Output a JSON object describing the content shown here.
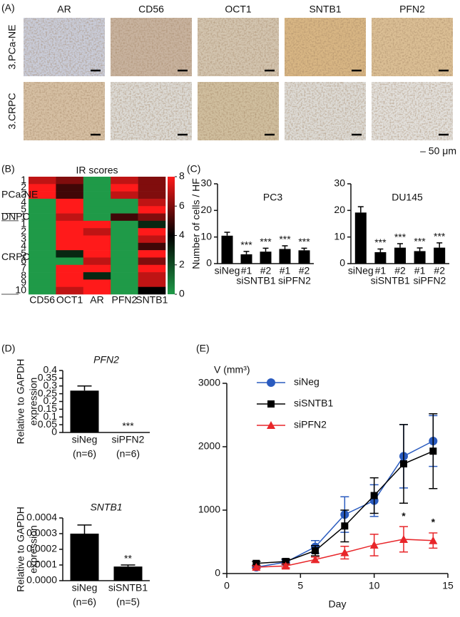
{
  "figure": {
    "panel_labels": [
      "(A)",
      "(B)",
      "(C)",
      "(D)",
      "(E)"
    ]
  },
  "ihc_panel": {
    "columns": [
      "AR",
      "CD56",
      "OCT1",
      "SNTB1",
      "PFN2"
    ],
    "rows": [
      "3.PCa-NE",
      "3.CRPC"
    ],
    "scale_label": "– 50 μm"
  },
  "chart_data": [
    {
      "type": "heatmap",
      "title": "IR scores",
      "columns": [
        "CD56",
        "OCT1",
        "AR",
        "PFN2",
        "SNTB1"
      ],
      "groups": [
        {
          "name": "PCa-NE",
          "rows": [
            "1",
            "2",
            "3",
            "4",
            "5"
          ],
          "values": [
            [
              7,
              6,
              0,
              7,
              6
            ],
            [
              8,
              5,
              0,
              8,
              6
            ],
            [
              8,
              5,
              0,
              7,
              6
            ],
            [
              0,
              8,
              0,
              0,
              7
            ],
            [
              0,
              8,
              0,
              0,
              8
            ]
          ]
        },
        {
          "name": "DNPC",
          "rows": [
            "1"
          ],
          "values": [
            [
              0,
              7,
              0,
              5,
              6
            ]
          ]
        },
        {
          "name": "CRPC",
          "rows": [
            "1",
            "2",
            "3",
            "4",
            "5",
            "6",
            "7",
            "8",
            "9",
            "10"
          ],
          "values": [
            [
              0,
              8,
              8,
              0,
              3
            ],
            [
              0,
              8,
              7,
              0,
              8
            ],
            [
              0,
              8,
              8,
              0,
              7
            ],
            [
              0,
              8,
              8,
              0,
              5
            ],
            [
              0,
              3,
              8,
              0,
              8
            ],
            [
              0,
              0,
              7,
              0,
              6
            ],
            [
              0,
              8,
              8,
              0,
              8
            ],
            [
              0,
              8,
              3,
              0,
              7
            ],
            [
              0,
              8,
              8,
              0,
              7
            ],
            [
              0,
              7,
              8,
              0,
              4
            ]
          ]
        }
      ],
      "zlim": [
        0,
        8
      ],
      "zticks": [
        0,
        2,
        4,
        6,
        8
      ],
      "colormap": [
        "#1f9a48",
        "#000000",
        "#ff1a1a"
      ]
    },
    {
      "type": "bar",
      "title": "PC3",
      "ylabel": "Number of cells / HF",
      "categories": [
        "siNeg",
        "#1",
        "#2",
        "#1",
        "#2"
      ],
      "groups": [
        "siSNTB1",
        "siPFN2"
      ],
      "values": [
        10.5,
        3.5,
        4.5,
        5.5,
        5
      ],
      "errors": [
        1.3,
        1.1,
        1.3,
        1.2,
        0.8
      ],
      "value_annotations": [
        null,
        "***",
        "***",
        "***",
        "***"
      ],
      "ylim": [
        0,
        30
      ],
      "yticks": [
        0,
        10,
        20,
        30
      ],
      "color": "#000000"
    },
    {
      "type": "bar",
      "title": "DU145",
      "categories": [
        "siNeg",
        "#1",
        "#2",
        "#1",
        "#2"
      ],
      "groups": [
        "siSNTB1",
        "siPFN2"
      ],
      "values": [
        19.2,
        4.3,
        6,
        4.7,
        6
      ],
      "errors": [
        2.2,
        1.2,
        1.5,
        1.2,
        1.8
      ],
      "value_annotations": [
        null,
        "***",
        "***",
        "***",
        "***"
      ],
      "ylim": [
        0,
        30
      ],
      "yticks": [
        0,
        10,
        20,
        30
      ],
      "color": "#000000"
    },
    {
      "type": "bar",
      "title": "PFN2",
      "title_italic": true,
      "ylabel": [
        "Relative to GAPDH",
        "expression"
      ],
      "categories": [
        "siNeg",
        "siPFN2"
      ],
      "sample_sizes": [
        "(n=6)",
        "(n=6)"
      ],
      "values": [
        0.27,
        0
      ],
      "errors": [
        0.03,
        null
      ],
      "value_annotations": [
        null,
        "***"
      ],
      "ylim": [
        0,
        0.4
      ],
      "yticks": [
        0,
        0.05,
        0.1,
        0.15,
        0.2,
        0.25,
        0.3,
        0.35,
        0.4
      ],
      "color": "#000000"
    },
    {
      "type": "bar",
      "title": "SNTB1",
      "title_italic": true,
      "ylabel": [
        "Relative to GAPDH",
        "expression"
      ],
      "categories": [
        "siNeg",
        "siSNTB1"
      ],
      "sample_sizes": [
        "(n=6)",
        "(n=5)"
      ],
      "values": [
        0.0003,
        9e-05
      ],
      "errors": [
        5.5e-05,
        1e-05
      ],
      "value_annotations": [
        null,
        "**"
      ],
      "ylim": [
        0,
        0.0004
      ],
      "yticks": [
        {
          "value": 0,
          "label": "0.0000"
        },
        {
          "value": 0.0001,
          "label": "0.0001"
        },
        {
          "value": 0.0002,
          "label": "0.0002"
        },
        {
          "value": 0.0003,
          "label": "0.0003"
        },
        {
          "value": 0.0004,
          "label": "0.0004"
        }
      ],
      "color": "#000000"
    },
    {
      "type": "line",
      "xlabel": "Day",
      "ylabel": "V (mm³)",
      "x": [
        2,
        4,
        6,
        8,
        10,
        12,
        14
      ],
      "series": [
        {
          "name": "siNeg",
          "color": "#2a5bbf",
          "marker": "circle",
          "values": [
            100,
            180,
            420,
            930,
            1150,
            1850,
            2090
          ],
          "errors": [
            20,
            40,
            100,
            280,
            250,
            500,
            400
          ]
        },
        {
          "name": "siSNTB1",
          "color": "#000000",
          "marker": "square",
          "values": [
            160,
            190,
            360,
            750,
            1230,
            1730,
            1930
          ],
          "errors": [
            30,
            40,
            80,
            250,
            280,
            620,
            590
          ]
        },
        {
          "name": "siPFN2",
          "color": "#e8262a",
          "marker": "triangle",
          "values": [
            100,
            120,
            220,
            330,
            450,
            540,
            520
          ],
          "errors": [
            20,
            30,
            40,
            100,
            170,
            200,
            120
          ],
          "significance": [
            null,
            null,
            null,
            null,
            null,
            "*",
            "*"
          ]
        }
      ],
      "xlim": [
        0,
        15
      ],
      "xticks": [
        0,
        5,
        10,
        15
      ],
      "ylim": [
        0,
        3000
      ],
      "yticks": [
        0,
        1000,
        2000,
        3000
      ]
    }
  ]
}
